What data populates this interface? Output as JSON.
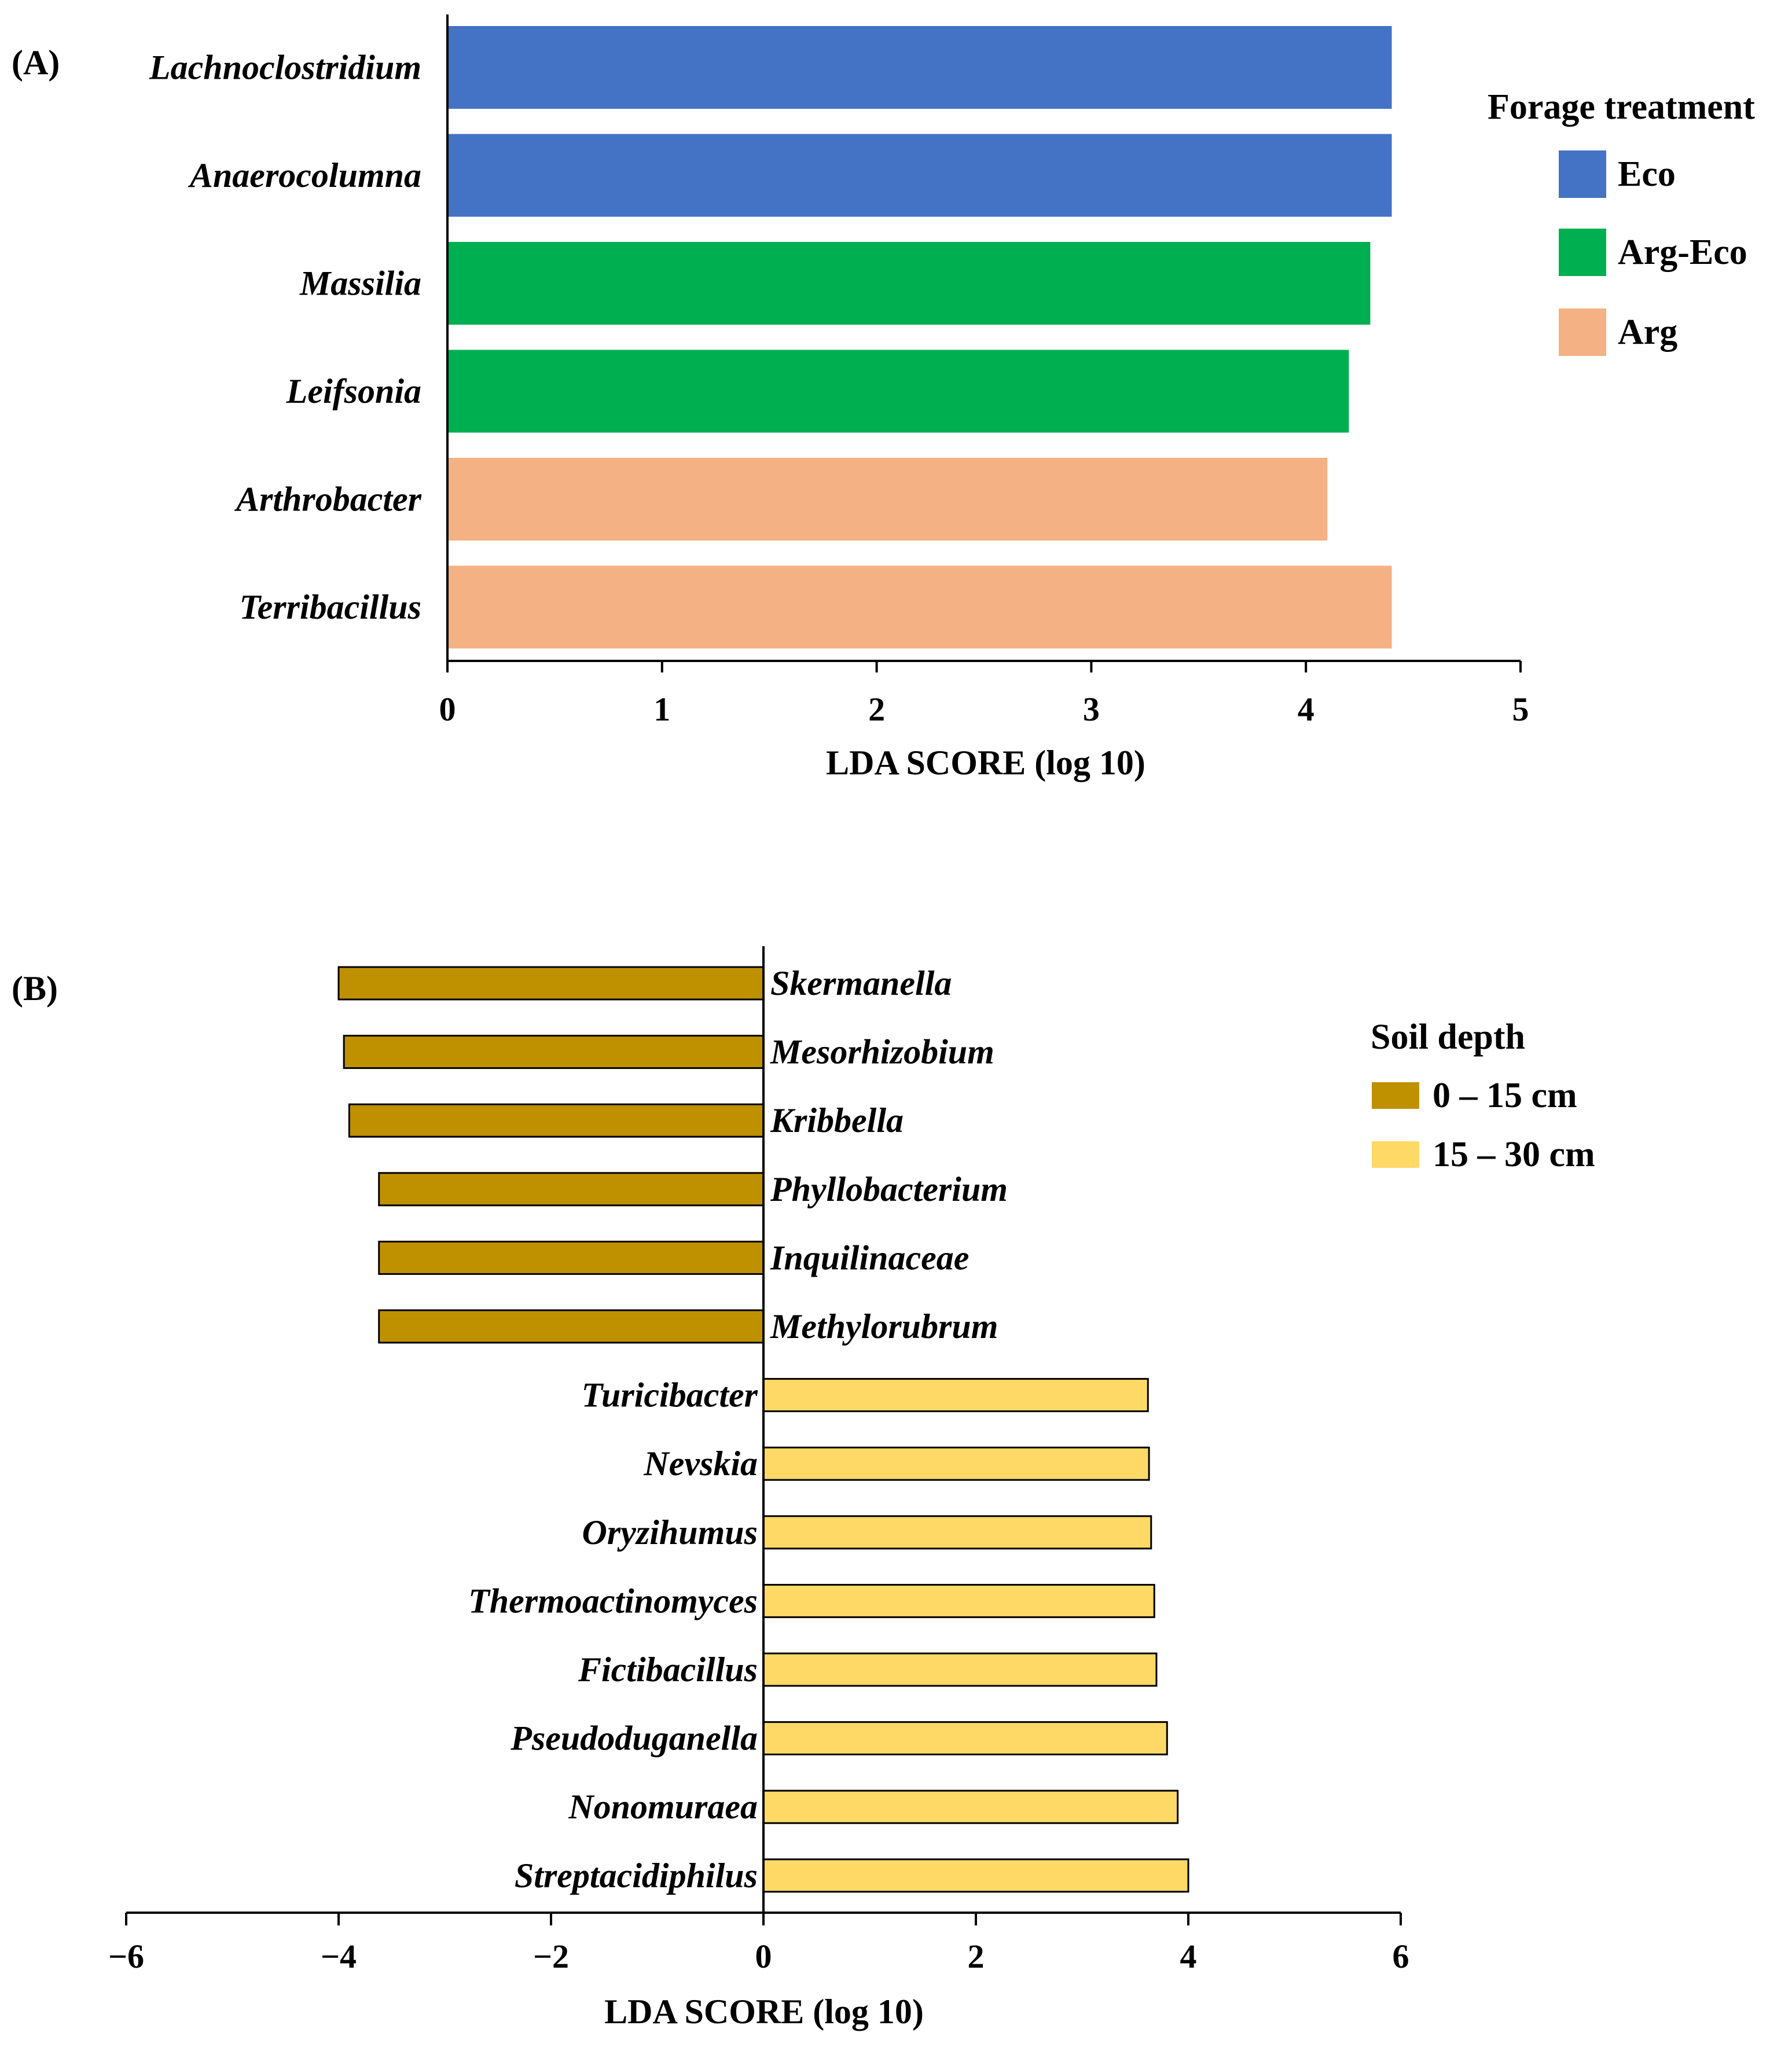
{
  "chart_data": [
    {
      "panel_label": "(A)",
      "type": "bar",
      "orientation": "horizontal",
      "categories": [
        "Lachnoclostridium",
        "Anaerocolumna",
        "Massilia",
        "Leifsonia",
        "Arthrobacter",
        "Terribacillus"
      ],
      "values": [
        4.4,
        4.4,
        4.3,
        4.2,
        4.1,
        4.4
      ],
      "groups": [
        "Eco",
        "Eco",
        "Arg-Eco",
        "Arg-Eco",
        "Arg",
        "Arg"
      ],
      "xlabel": "LDA SCORE (log 10)",
      "xlim": [
        0,
        5
      ],
      "xticks": [
        0,
        1,
        2,
        3,
        4,
        5
      ],
      "grid": false,
      "legend": {
        "title": "Forage treatment",
        "placement": "right",
        "items": [
          {
            "label": "Eco",
            "color": "#4472C4"
          },
          {
            "label": "Arg-Eco",
            "color": "#00B050"
          },
          {
            "label": "Arg",
            "color": "#F4B183"
          }
        ]
      }
    },
    {
      "panel_label": "(B)",
      "type": "bar",
      "orientation": "horizontal",
      "categories": [
        "Skermanella",
        "Mesorhizobium",
        "Kribbella",
        "Phyllobacterium",
        "Inquilinaceae",
        "Methylorubrum",
        "Turicibacter",
        "Nevskia",
        "Oryzihumus",
        "Thermoactinomyces",
        "Fictibacillus",
        "Pseudoduganella",
        "Nonomuraea",
        "Streptacidiphilus"
      ],
      "values": [
        -4.0,
        -3.95,
        -3.9,
        -3.62,
        -3.62,
        -3.62,
        3.62,
        3.63,
        3.65,
        3.68,
        3.7,
        3.8,
        3.9,
        4.0
      ],
      "groups": [
        "0 – 15 cm",
        "0 – 15 cm",
        "0 – 15 cm",
        "0 – 15 cm",
        "0 – 15 cm",
        "0 – 15 cm",
        "15 – 30 cm",
        "15 – 30 cm",
        "15 – 30 cm",
        "15 – 30 cm",
        "15 – 30 cm",
        "15 – 30 cm",
        "15 – 30 cm",
        "15 – 30 cm"
      ],
      "xlabel": "LDA SCORE (log 10)",
      "xlim": [
        -6,
        6
      ],
      "xticks": [
        -6,
        -4,
        -2,
        0,
        2,
        4,
        6
      ],
      "xtick_labels": [
        "−6",
        "−4",
        "−2",
        "0",
        "2",
        "4",
        "6"
      ],
      "grid": false,
      "legend": {
        "title": "Soil depth",
        "placement": "right",
        "items": [
          {
            "label": "0 – 15 cm",
            "color": "#BF9000"
          },
          {
            "label": "15 – 30 cm",
            "color": "#FFD966"
          }
        ]
      }
    }
  ]
}
